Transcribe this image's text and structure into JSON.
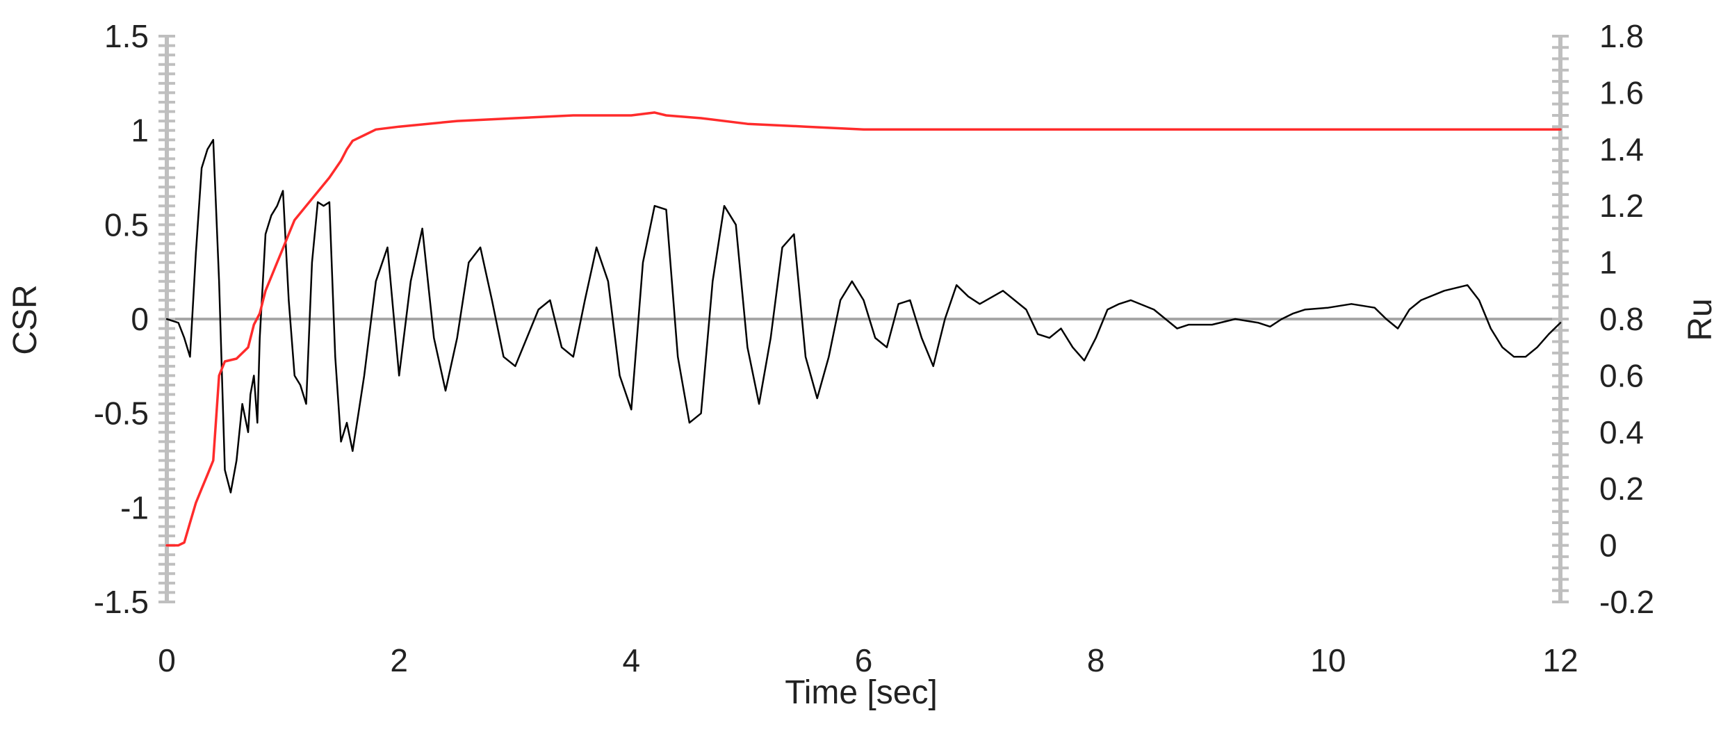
{
  "chart_data": {
    "type": "line",
    "title": "",
    "xlabel": "Time [sec]",
    "ylabel": "CSR",
    "y2label": "Ru",
    "xlim": [
      0,
      12
    ],
    "ylim": [
      -1.5,
      1.5
    ],
    "y2lim": [
      -0.2,
      1.8
    ],
    "x_ticks": [
      0,
      2,
      4,
      6,
      8,
      10,
      12
    ],
    "x_tick_labels": [
      "0",
      "2",
      "4",
      "6",
      "8",
      "10",
      "12"
    ],
    "y_ticks": [
      -1.5,
      -1,
      -0.5,
      0,
      0.5,
      1,
      1.5
    ],
    "y_tick_labels": [
      "-1.5",
      "-1",
      "-0.5",
      "0",
      "0.5",
      "1",
      "1.5"
    ],
    "y2_ticks": [
      -0.2,
      0,
      0.2,
      0.4,
      0.6,
      0.8,
      1,
      1.2,
      1.4,
      1.6,
      1.8
    ],
    "y2_tick_labels": [
      "-0.2",
      "0",
      "0.2",
      "0.4",
      "0.6",
      "0.8",
      "1",
      "1.2",
      "1.4",
      "1.6",
      "1.8"
    ],
    "grid": false,
    "zero_line": true,
    "colors": {
      "csr": "#000000",
      "ru": "#ff2b2b",
      "axis": "#bfbfbf",
      "zero": "#a6a6a6"
    },
    "series": [
      {
        "axis": "left",
        "color": "#000000",
        "x": [
          0,
          0.1,
          0.15,
          0.2,
          0.25,
          0.3,
          0.35,
          0.4,
          0.45,
          0.5,
          0.55,
          0.6,
          0.65,
          0.7,
          0.72,
          0.75,
          0.78,
          0.8,
          0.85,
          0.9,
          0.95,
          1.0,
          1.05,
          1.1,
          1.15,
          1.2,
          1.25,
          1.3,
          1.35,
          1.4,
          1.45,
          1.5,
          1.55,
          1.6,
          1.65,
          1.7,
          1.8,
          1.9,
          2.0,
          2.1,
          2.2,
          2.3,
          2.4,
          2.5,
          2.6,
          2.7,
          2.8,
          2.9,
          3.0,
          3.1,
          3.2,
          3.3,
          3.4,
          3.5,
          3.6,
          3.7,
          3.8,
          3.9,
          4.0,
          4.1,
          4.2,
          4.3,
          4.4,
          4.5,
          4.6,
          4.7,
          4.8,
          4.9,
          5.0,
          5.1,
          5.2,
          5.3,
          5.4,
          5.5,
          5.6,
          5.7,
          5.8,
          5.9,
          6.0,
          6.1,
          6.2,
          6.3,
          6.4,
          6.5,
          6.6,
          6.7,
          6.8,
          6.9,
          7.0,
          7.2,
          7.4,
          7.5,
          7.6,
          7.7,
          7.8,
          7.9,
          8.0,
          8.1,
          8.2,
          8.3,
          8.5,
          8.7,
          8.8,
          9.0,
          9.2,
          9.4,
          9.5,
          9.6,
          9.7,
          9.8,
          10.0,
          10.2,
          10.4,
          10.5,
          10.6,
          10.7,
          10.8,
          11.0,
          11.2,
          11.3,
          11.4,
          11.5,
          11.6,
          11.7,
          11.8,
          11.9,
          12.0
        ],
        "y": [
          0.0,
          -0.02,
          -0.1,
          -0.2,
          0.35,
          0.8,
          0.9,
          0.95,
          0.2,
          -0.8,
          -0.92,
          -0.75,
          -0.45,
          -0.6,
          -0.4,
          -0.3,
          -0.55,
          -0.1,
          0.45,
          0.55,
          0.6,
          0.68,
          0.1,
          -0.3,
          -0.35,
          -0.45,
          0.3,
          0.62,
          0.6,
          0.62,
          -0.2,
          -0.65,
          -0.55,
          -0.7,
          -0.5,
          -0.3,
          0.2,
          0.38,
          -0.3,
          0.2,
          0.48,
          -0.1,
          -0.38,
          -0.1,
          0.3,
          0.38,
          0.1,
          -0.2,
          -0.25,
          -0.1,
          0.05,
          0.1,
          -0.15,
          -0.2,
          0.1,
          0.38,
          0.2,
          -0.3,
          -0.48,
          0.3,
          0.6,
          0.58,
          -0.2,
          -0.55,
          -0.5,
          0.2,
          0.6,
          0.5,
          -0.15,
          -0.45,
          -0.1,
          0.38,
          0.45,
          -0.2,
          -0.42,
          -0.2,
          0.1,
          0.2,
          0.1,
          -0.1,
          -0.15,
          0.08,
          0.1,
          -0.1,
          -0.25,
          0.0,
          0.18,
          0.12,
          0.08,
          0.15,
          0.05,
          -0.08,
          -0.1,
          -0.05,
          -0.15,
          -0.22,
          -0.1,
          0.05,
          0.08,
          0.1,
          0.05,
          -0.05,
          -0.03,
          -0.03,
          0.0,
          -0.02,
          -0.04,
          0.0,
          0.03,
          0.05,
          0.06,
          0.08,
          0.06,
          0.0,
          -0.05,
          0.05,
          0.1,
          0.15,
          0.18,
          0.1,
          -0.05,
          -0.15,
          -0.2,
          -0.2,
          -0.15,
          -0.08,
          -0.02
        ]
      },
      {
        "axis": "right",
        "color": "#ff2b2b",
        "x": [
          0,
          0.1,
          0.15,
          0.2,
          0.25,
          0.3,
          0.35,
          0.4,
          0.45,
          0.5,
          0.6,
          0.7,
          0.75,
          0.8,
          0.85,
          0.9,
          0.95,
          1.0,
          1.05,
          1.1,
          1.2,
          1.3,
          1.4,
          1.45,
          1.5,
          1.55,
          1.6,
          1.7,
          1.8,
          2.0,
          2.5,
          3.0,
          3.5,
          4.0,
          4.2,
          4.3,
          4.6,
          5.0,
          5.5,
          6.0,
          7.0,
          8.0,
          9.0,
          10.0,
          11.0,
          12.0
        ],
        "y": [
          0.0,
          0.0,
          0.01,
          0.08,
          0.15,
          0.2,
          0.25,
          0.3,
          0.6,
          0.65,
          0.66,
          0.7,
          0.78,
          0.82,
          0.9,
          0.95,
          1.0,
          1.05,
          1.1,
          1.15,
          1.2,
          1.25,
          1.3,
          1.33,
          1.36,
          1.4,
          1.43,
          1.45,
          1.47,
          1.48,
          1.5,
          1.51,
          1.52,
          1.52,
          1.53,
          1.52,
          1.51,
          1.49,
          1.48,
          1.47,
          1.47,
          1.47,
          1.47,
          1.47,
          1.47,
          1.47
        ]
      }
    ]
  }
}
